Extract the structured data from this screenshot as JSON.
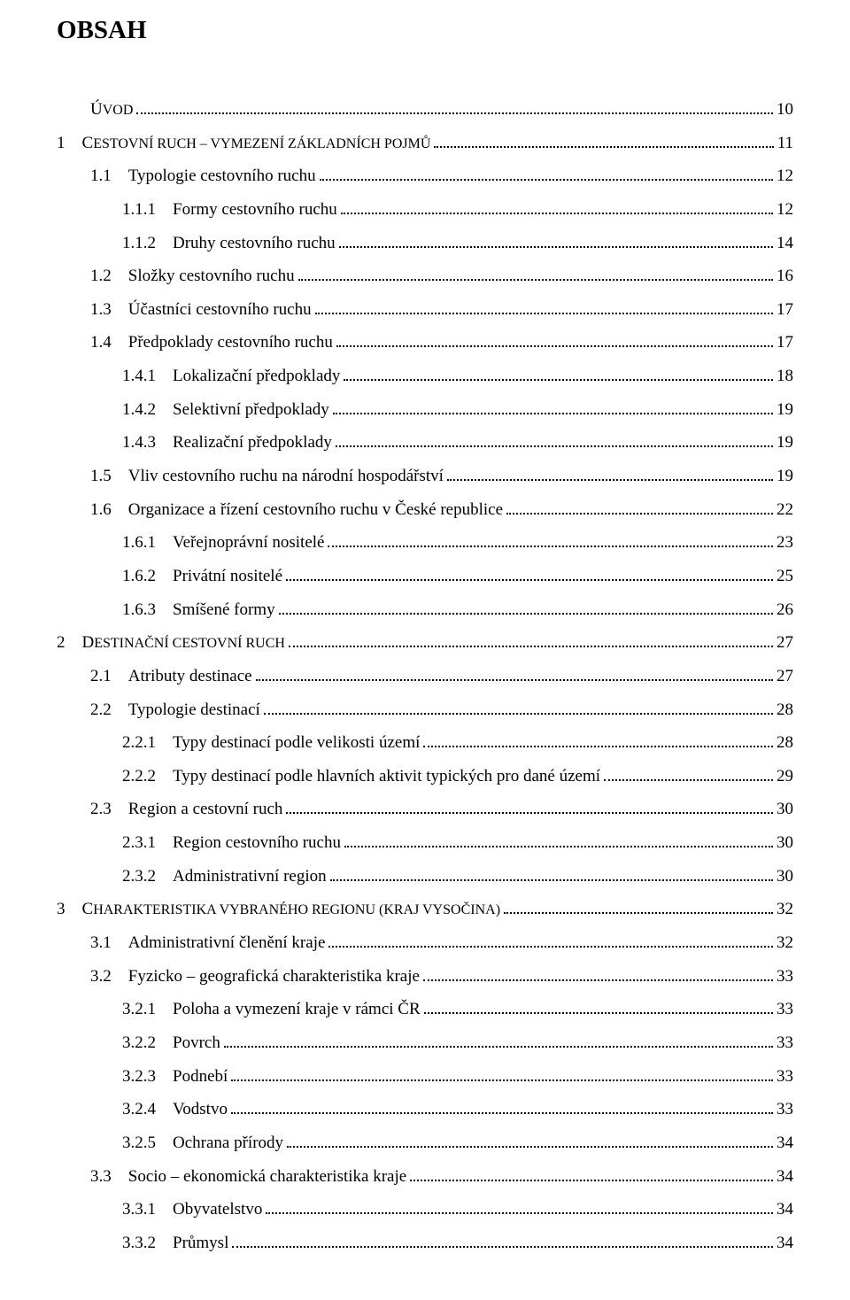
{
  "title_first": "O",
  "title_rest": "BSAH",
  "entries": [
    {
      "num": "",
      "label_first": "Ú",
      "label_rest": "VOD",
      "page": "10",
      "level": "lvl0",
      "smallcaps": true
    },
    {
      "num": "1    ",
      "label_first": "C",
      "label_rest": "ESTOVNÍ RUCH – VYMEZENÍ ZÁKLADNÍCH POJMŮ",
      "page": "11",
      "level": "chap",
      "smallcaps": true
    },
    {
      "num": "1.1    ",
      "label": "Typologie cestovního ruchu",
      "page": "12",
      "level": "lvl1"
    },
    {
      "num": "1.1.1    ",
      "label": "Formy cestovního ruchu",
      "page": "12",
      "level": "lvl2"
    },
    {
      "num": "1.1.2    ",
      "label": "Druhy cestovního ruchu",
      "page": "14",
      "level": "lvl2"
    },
    {
      "num": "1.2    ",
      "label": "Složky cestovního ruchu",
      "page": "16",
      "level": "lvl1"
    },
    {
      "num": "1.3    ",
      "label": "Účastníci cestovního ruchu",
      "page": "17",
      "level": "lvl1"
    },
    {
      "num": "1.4    ",
      "label": "Předpoklady cestovního ruchu",
      "page": "17",
      "level": "lvl1"
    },
    {
      "num": "1.4.1    ",
      "label": "Lokalizační předpoklady",
      "page": "18",
      "level": "lvl2"
    },
    {
      "num": "1.4.2    ",
      "label": "Selektivní předpoklady",
      "page": "19",
      "level": "lvl2"
    },
    {
      "num": "1.4.3    ",
      "label": "Realizační předpoklady",
      "page": "19",
      "level": "lvl2"
    },
    {
      "num": "1.5    ",
      "label": "Vliv cestovního ruchu na národní hospodářství",
      "page": "19",
      "level": "lvl1"
    },
    {
      "num": "1.6    ",
      "label": "Organizace a řízení cestovního ruchu v České republice",
      "page": "22",
      "level": "lvl1"
    },
    {
      "num": "1.6.1    ",
      "label": "Veřejnoprávní nositelé",
      "page": "23",
      "level": "lvl2"
    },
    {
      "num": "1.6.2    ",
      "label": "Privátní nositelé",
      "page": "25",
      "level": "lvl2"
    },
    {
      "num": "1.6.3    ",
      "label": "Smíšené formy",
      "page": "26",
      "level": "lvl2"
    },
    {
      "num": "2    ",
      "label_first": "D",
      "label_rest": "ESTINAČNÍ CESTOVNÍ RUCH",
      "page": "27",
      "level": "chap",
      "smallcaps": true
    },
    {
      "num": "2.1    ",
      "label": "Atributy destinace",
      "page": "27",
      "level": "lvl1"
    },
    {
      "num": "2.2    ",
      "label": "Typologie destinací",
      "page": "28",
      "level": "lvl1"
    },
    {
      "num": "2.2.1    ",
      "label": "Typy destinací podle velikosti území",
      "page": "28",
      "level": "lvl2"
    },
    {
      "num": "2.2.2    ",
      "label": "Typy destinací podle hlavních aktivit typických pro dané území",
      "page": "29",
      "level": "lvl2"
    },
    {
      "num": "2.3    ",
      "label": "Region a cestovní ruch",
      "page": "30",
      "level": "lvl1"
    },
    {
      "num": "2.3.1    ",
      "label": "Region cestovního ruchu",
      "page": "30",
      "level": "lvl2"
    },
    {
      "num": "2.3.2    ",
      "label": "Administrativní region",
      "page": "30",
      "level": "lvl2"
    },
    {
      "num": "3    ",
      "label_first": "C",
      "label_rest": "HARAKTERISTIKA VYBRANÉHO REGIONU (KRAJ VYSOČINA)",
      "page": "32",
      "level": "chap",
      "smallcaps": true,
      "label_rest_style": "font-size:16px"
    },
    {
      "num": "3.1    ",
      "label": "Administrativní členění kraje",
      "page": "32",
      "level": "lvl1"
    },
    {
      "num": "3.2    ",
      "label": "Fyzicko – geografická charakteristika kraje",
      "page": "33",
      "level": "lvl1"
    },
    {
      "num": "3.2.1    ",
      "label": "Poloha a vymezení kraje v rámci ČR",
      "page": "33",
      "level": "lvl2"
    },
    {
      "num": "3.2.2    ",
      "label": "Povrch",
      "page": "33",
      "level": "lvl2"
    },
    {
      "num": "3.2.3    ",
      "label": "Podnebí",
      "page": "33",
      "level": "lvl2"
    },
    {
      "num": "3.2.4    ",
      "label": "Vodstvo",
      "page": "33",
      "level": "lvl2"
    },
    {
      "num": "3.2.5    ",
      "label": "Ochrana přírody",
      "page": "34",
      "level": "lvl2"
    },
    {
      "num": "3.3    ",
      "label": "Socio – ekonomická charakteristika kraje",
      "page": "34",
      "level": "lvl1"
    },
    {
      "num": "3.3.1    ",
      "label": "Obyvatelstvo",
      "page": "34",
      "level": "lvl2"
    },
    {
      "num": "3.3.2    ",
      "label": "Průmysl",
      "page": "34",
      "level": "lvl2"
    }
  ]
}
